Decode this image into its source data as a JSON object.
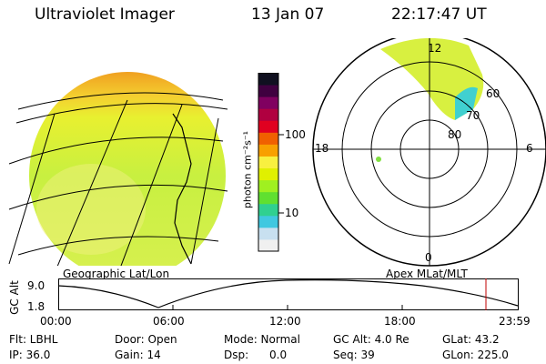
{
  "header": {
    "instrument": "Ultraviolet Imager",
    "date": "13 Jan 07",
    "time": "22:17:47 UT"
  },
  "colorbar": {
    "label": "photon cm⁻²s⁻¹",
    "ticks": [
      "100",
      "10"
    ],
    "colors": [
      "#f0f0f0",
      "#c8e0f0",
      "#40c8e0",
      "#30d090",
      "#60e030",
      "#a0f020",
      "#e0f000",
      "#f8f040",
      "#f8a000",
      "#f06000",
      "#e00020",
      "#b00040",
      "#800060",
      "#400040",
      "#101020"
    ]
  },
  "geo_map": {
    "label": "Geographic Lat/Lon",
    "disk_color": "#d8f040"
  },
  "polar_map": {
    "label": "Apex MLat/MLT",
    "hour_labels": {
      "top": "12",
      "left": "18",
      "right": "6",
      "bottom": "0"
    },
    "lat_labels": [
      "60",
      "70",
      "80"
    ]
  },
  "altitude_plot": {
    "ylabel": "GC Alt",
    "ticks": [
      "9.0",
      "1.8"
    ],
    "time_ticks": [
      "00:00",
      "06:00",
      "12:00",
      "18:00",
      "23:59"
    ],
    "marker_color": "#c00000"
  },
  "info": {
    "flt": "Flt: LBHL",
    "door": "Door: Open",
    "mode": "Mode: Normal",
    "gc_alt": "GC Alt: 4.0 Re",
    "glat": "GLat:  43.2",
    "ip": "IP: 36.0",
    "gain": "Gain: 14",
    "dsp": "Dsp:      0.0",
    "seq": "Seq: 39",
    "glon": "GLon: 225.0"
  }
}
